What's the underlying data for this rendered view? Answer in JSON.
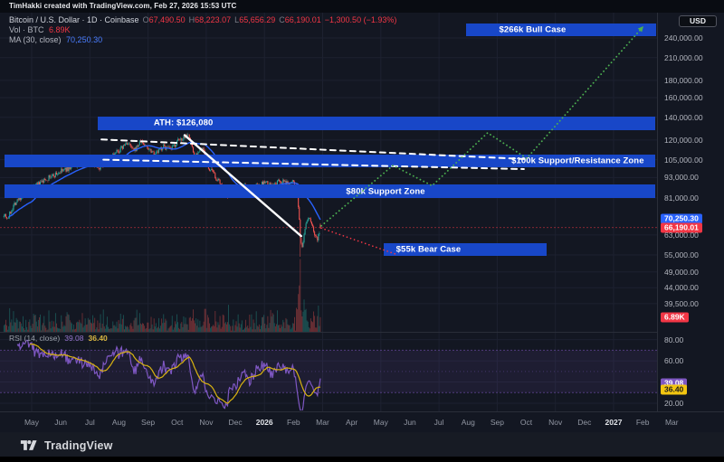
{
  "header": {
    "attribution": "TimHakki created with TradingView.com, Feb 27, 2026 15:53 UTC",
    "currency_button": "USD"
  },
  "legend": {
    "title": "Bitcoin / U.S. Dollar · 1D · Coinbase",
    "ohlc": [
      {
        "k": "O",
        "v": "67,490.50"
      },
      {
        "k": "H",
        "v": "68,223.07"
      },
      {
        "k": "L",
        "v": "65,656.29"
      },
      {
        "k": "C",
        "v": "66,190.01"
      }
    ],
    "change": "−1,300.50 (−1.93%)",
    "vol_label": "Vol · BTC",
    "vol_value": "6.89K",
    "ma_label": "MA (30, close)",
    "ma_value": "70,250.30"
  },
  "rsi_legend": {
    "label": "RSI (14, close)",
    "rsi_value": "39.08",
    "ma_value": "36.40"
  },
  "badges": {
    "ma": "70,250.30",
    "last": "66,190.01",
    "volume": "6.89K",
    "rsi": "39.08",
    "rsi_ma": "36.40"
  },
  "footer": {
    "brand": "TradingView"
  },
  "colors": {
    "up": "#26a69a",
    "down": "#ef5350",
    "ma_line": "#2962ff",
    "zone_blue": "#1847c8",
    "bull_green": "#4caf50",
    "bear_red": "#f23645",
    "rsi_purple": "#7e57c2",
    "rsi_ma_yellow": "#d9b310",
    "badge_yellow": "#f2c511",
    "grid": "#1d2130",
    "separator": "#2a2e39",
    "white": "#ffffff"
  },
  "chart_data": {
    "type": "candlestick",
    "symbol": "Bitcoin / U.S. Dollar",
    "interval": "1D",
    "exchange": "Coinbase",
    "scale_type": "logarithmic",
    "last_ohlc": {
      "open": 67490.5,
      "high": 68223.07,
      "low": 65656.29,
      "close": 66190.01
    },
    "change": -1300.5,
    "change_pct": -1.93,
    "ma30": 70250.3,
    "volume_btc": 6890,
    "rsi14": 39.08,
    "rsi14_ma": 36.4,
    "ath": 126080,
    "day0": "2025-05-01",
    "price_waypoints": [
      [
        -29,
        73000
      ],
      [
        -25,
        70500
      ],
      [
        -18,
        78000
      ],
      [
        -8,
        83000
      ],
      [
        0,
        86000
      ],
      [
        15,
        92000
      ],
      [
        31,
        97000
      ],
      [
        46,
        101000
      ],
      [
        61,
        103500
      ],
      [
        72,
        99500
      ],
      [
        76,
        104000
      ],
      [
        92,
        112000
      ],
      [
        100,
        118000
      ],
      [
        107,
        111000
      ],
      [
        114,
        119000
      ],
      [
        123,
        113000
      ],
      [
        130,
        109500
      ],
      [
        138,
        115000
      ],
      [
        145,
        112000
      ],
      [
        153,
        119000
      ],
      [
        160,
        123000
      ],
      [
        163,
        126080
      ],
      [
        167,
        117000
      ],
      [
        170,
        108000
      ],
      [
        175,
        111000
      ],
      [
        179,
        113000
      ],
      [
        184,
        100000
      ],
      [
        190,
        95500
      ],
      [
        196,
        90000
      ],
      [
        200,
        86000
      ],
      [
        204,
        81500
      ],
      [
        208,
        87000
      ],
      [
        214,
        85500
      ],
      [
        222,
        89000
      ],
      [
        228,
        85000
      ],
      [
        236,
        88000
      ],
      [
        245,
        90000
      ],
      [
        252,
        87000
      ],
      [
        259,
        91000
      ],
      [
        266,
        89500
      ],
      [
        272,
        91500
      ],
      [
        276,
        88000
      ],
      [
        277,
        84500
      ],
      [
        279,
        76000
      ],
      [
        281,
        62000
      ],
      [
        283,
        58500
      ],
      [
        285,
        63000
      ],
      [
        288,
        69500
      ],
      [
        291,
        71000
      ],
      [
        294,
        66000
      ],
      [
        297,
        62500
      ],
      [
        299,
        61500
      ],
      [
        301,
        64500
      ],
      [
        302,
        66190
      ]
    ],
    "zones": [
      {
        "key": "bull",
        "label": "$266k Bull Case",
        "target": 266000,
        "price_high": 265000,
        "price_low": 243000,
        "day_start": 454,
        "day_end": 653
      },
      {
        "key": "ath",
        "label": "ATH: $126,080",
        "target": 126080,
        "price_high": 141000,
        "price_low": 128000,
        "day_start": 69,
        "day_end": 652
      },
      {
        "key": "zone100k",
        "label": "$100k Support/Resistance Zone",
        "target": 100000,
        "price_high": 108500,
        "price_low": 99500,
        "day_start": -28,
        "day_end": 652
      },
      {
        "key": "zone80k",
        "label": "$80k Support Zone",
        "target": 80000,
        "price_high": 88500,
        "price_low": 81000,
        "day_start": -28,
        "day_end": 652
      },
      {
        "key": "bear",
        "label": "$55k Bear Case",
        "target": 55000,
        "price_high": 59500,
        "price_low": 54500,
        "day_start": 368,
        "day_end": 539
      }
    ],
    "trendlines": [
      {
        "key": "downtrend-solid",
        "style": "solid",
        "color": "#ffffff",
        "width": 2.4,
        "points": [
          [
            160,
            124000
          ],
          [
            282,
            62500
          ]
        ]
      },
      {
        "key": "channel-upper",
        "style": "dashed",
        "color": "#ffffff",
        "width": 2,
        "points": [
          [
            73,
            120500
          ],
          [
            515,
            105500
          ]
        ]
      },
      {
        "key": "channel-lower",
        "style": "dashed",
        "color": "#ffffff",
        "width": 2,
        "points": [
          [
            75,
            105000
          ],
          [
            515,
            98500
          ]
        ]
      },
      {
        "key": "bull-projection",
        "style": "dotted",
        "color": "#4caf50",
        "width": 1.8,
        "arrow": true,
        "points": [
          [
            303,
            67000
          ],
          [
            378,
            101000
          ],
          [
            419,
            88000
          ],
          [
            477,
            126000
          ],
          [
            518,
            106000
          ],
          [
            640,
            260000
          ]
        ]
      },
      {
        "key": "bear-projection",
        "style": "dotted",
        "color": "#f23645",
        "width": 1.6,
        "points": [
          [
            303,
            66000
          ],
          [
            383,
            55000
          ]
        ]
      }
    ],
    "last_price_line": 66190.01,
    "y_axis": {
      "type": "log",
      "ticks": [
        {
          "v": 240000,
          "label": "240,000.00"
        },
        {
          "v": 210000,
          "label": "210,000.00"
        },
        {
          "v": 180000,
          "label": "180,000.00"
        },
        {
          "v": 160000,
          "label": "160,000.00"
        },
        {
          "v": 140000,
          "label": "140,000.00"
        },
        {
          "v": 120000,
          "label": "120,000.00"
        },
        {
          "v": 105000,
          "label": "105,000.00"
        },
        {
          "v": 93000,
          "label": "93,000.00"
        },
        {
          "v": 81000,
          "label": "81,000.00"
        },
        {
          "v": 63000,
          "label": "63,000.00"
        },
        {
          "v": 55000,
          "label": "55,000.00"
        },
        {
          "v": 49000,
          "label": "49,000.00"
        },
        {
          "v": 44000,
          "label": "44,000.00"
        },
        {
          "v": 39500,
          "label": "39,500.00"
        }
      ]
    },
    "rsi_axis": {
      "ticks": [
        {
          "v": 80,
          "label": "80.00"
        },
        {
          "v": 60,
          "label": "60.00"
        },
        {
          "v": 20,
          "label": "20.00"
        }
      ],
      "bands": [
        70,
        50,
        30
      ],
      "grid": [
        80,
        60,
        40,
        20
      ]
    },
    "x_axis": {
      "ticks": [
        {
          "m": 0,
          "label": "May"
        },
        {
          "m": 1,
          "label": "Jun"
        },
        {
          "m": 2,
          "label": "Jul"
        },
        {
          "m": 3,
          "label": "Aug"
        },
        {
          "m": 4,
          "label": "Sep"
        },
        {
          "m": 5,
          "label": "Oct"
        },
        {
          "m": 6,
          "label": "Nov"
        },
        {
          "m": 7,
          "label": "Dec"
        },
        {
          "m": 8,
          "label": "2026",
          "year": true
        },
        {
          "m": 9,
          "label": "Feb"
        },
        {
          "m": 10,
          "label": "Mar"
        },
        {
          "m": 11,
          "label": "Apr"
        },
        {
          "m": 12,
          "label": "May"
        },
        {
          "m": 13,
          "label": "Jun"
        },
        {
          "m": 14,
          "label": "Jul"
        },
        {
          "m": 15,
          "label": "Aug"
        },
        {
          "m": 16,
          "label": "Sep"
        },
        {
          "m": 17,
          "label": "Oct"
        },
        {
          "m": 18,
          "label": "Nov"
        },
        {
          "m": 19,
          "label": "Dec"
        },
        {
          "m": 20,
          "label": "2027",
          "year": true
        },
        {
          "m": 21,
          "label": "Feb"
        },
        {
          "m": 22,
          "label": "Mar"
        }
      ]
    }
  }
}
